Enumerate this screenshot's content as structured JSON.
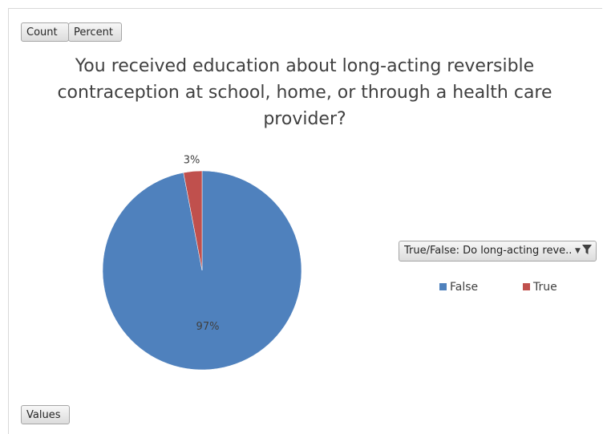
{
  "buttons": {
    "count": "Count",
    "percent": "Percent",
    "values": "Values"
  },
  "filter": {
    "label": "True/False: Do long-acting reve...",
    "dropdown_icon": "dropdown-arrow-icon",
    "filter_icon": "funnel-icon"
  },
  "colors": {
    "False": "#4f81bd",
    "True": "#c0504d"
  },
  "chart_data": {
    "type": "pie",
    "title": "You received education about long-acting reversible contraception at school, home, or through a health care provider?",
    "categories": [
      "False",
      "True"
    ],
    "values": [
      97,
      3
    ],
    "data_labels": [
      "97%",
      "3%"
    ],
    "legend": [
      "False",
      "True"
    ],
    "legend_position": "right"
  }
}
